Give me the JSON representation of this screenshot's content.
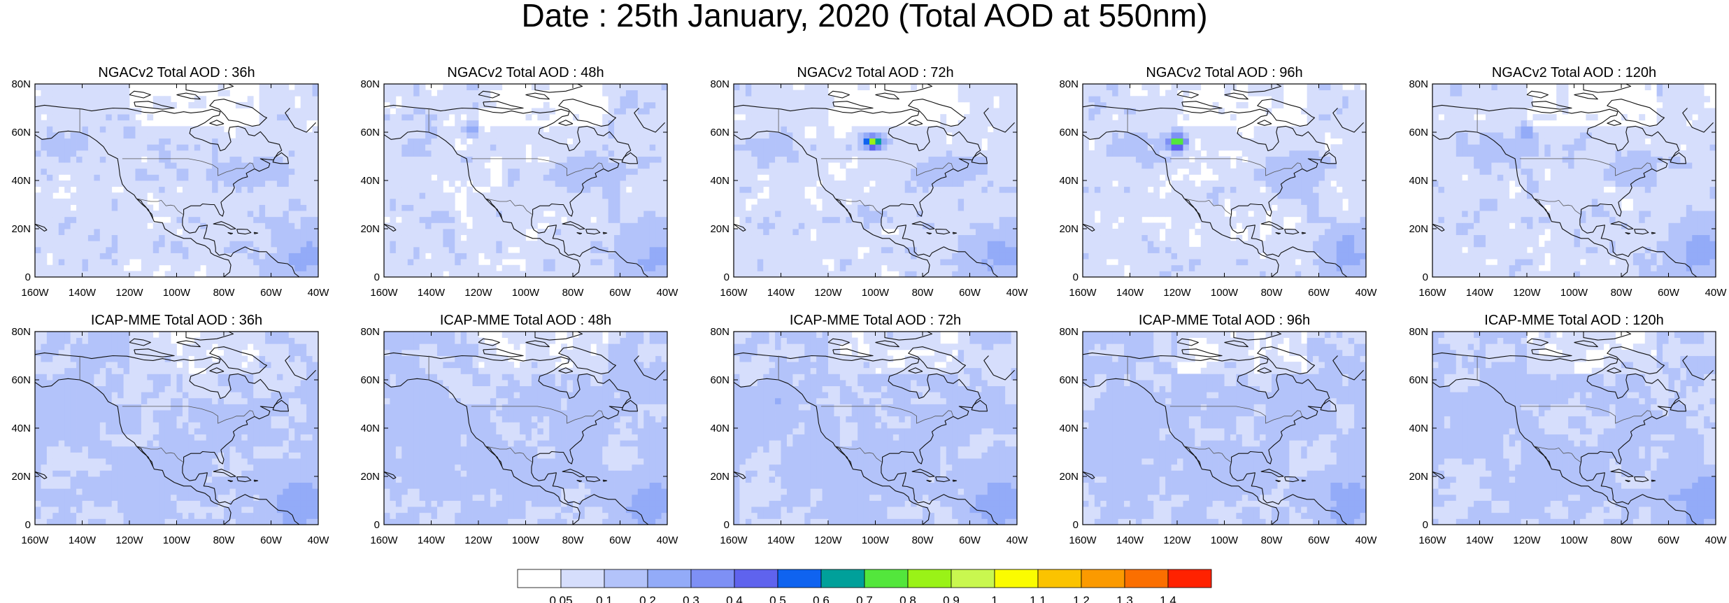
{
  "title": "Date : 25th January, 2020 (Total AOD at 550nm)",
  "map": {
    "lat_labels": [
      "80N",
      "60N",
      "40N",
      "20N",
      "0"
    ],
    "lon_labels": [
      "160W",
      "140W",
      "120W",
      "100W",
      "80W",
      "60W",
      "40W"
    ]
  },
  "panels": [
    {
      "title": "NGACv2 Total AOD : 36h",
      "model": "NGACv2",
      "lead": "36h"
    },
    {
      "title": "NGACv2 Total AOD : 48h",
      "model": "NGACv2",
      "lead": "48h"
    },
    {
      "title": "NGACv2 Total AOD : 72h",
      "model": "NGACv2",
      "lead": "72h"
    },
    {
      "title": "NGACv2 Total AOD : 96h",
      "model": "NGACv2",
      "lead": "96h"
    },
    {
      "title": "NGACv2 Total AOD : 120h",
      "model": "NGACv2",
      "lead": "120h"
    },
    {
      "title": "ICAP-MME Total AOD : 36h",
      "model": "ICAP-MME",
      "lead": "36h"
    },
    {
      "title": "ICAP-MME Total AOD : 48h",
      "model": "ICAP-MME",
      "lead": "48h"
    },
    {
      "title": "ICAP-MME Total AOD : 72h",
      "model": "ICAP-MME",
      "lead": "72h"
    },
    {
      "title": "ICAP-MME Total AOD : 96h",
      "model": "ICAP-MME",
      "lead": "96h"
    },
    {
      "title": "ICAP-MME Total AOD : 120h",
      "model": "ICAP-MME",
      "lead": "120h"
    }
  ],
  "colorbar": {
    "labels": [
      "0.05",
      "0.1",
      "0.2",
      "0.3",
      "0.4",
      "0.5",
      "0.6",
      "0.7",
      "0.8",
      "0.9",
      "1",
      "1.1",
      "1.2",
      "1.3",
      "1.4"
    ],
    "colors": [
      "#ffffff",
      "#d6defc",
      "#b3c3fa",
      "#93abf8",
      "#7e90f5",
      "#5f63ee",
      "#0f63f0",
      "#00a09a",
      "#53e63c",
      "#9af217",
      "#c9f74f",
      "#fbfc00",
      "#fbc300",
      "#fb9a00",
      "#fb6f00",
      "#ff2200"
    ]
  }
}
